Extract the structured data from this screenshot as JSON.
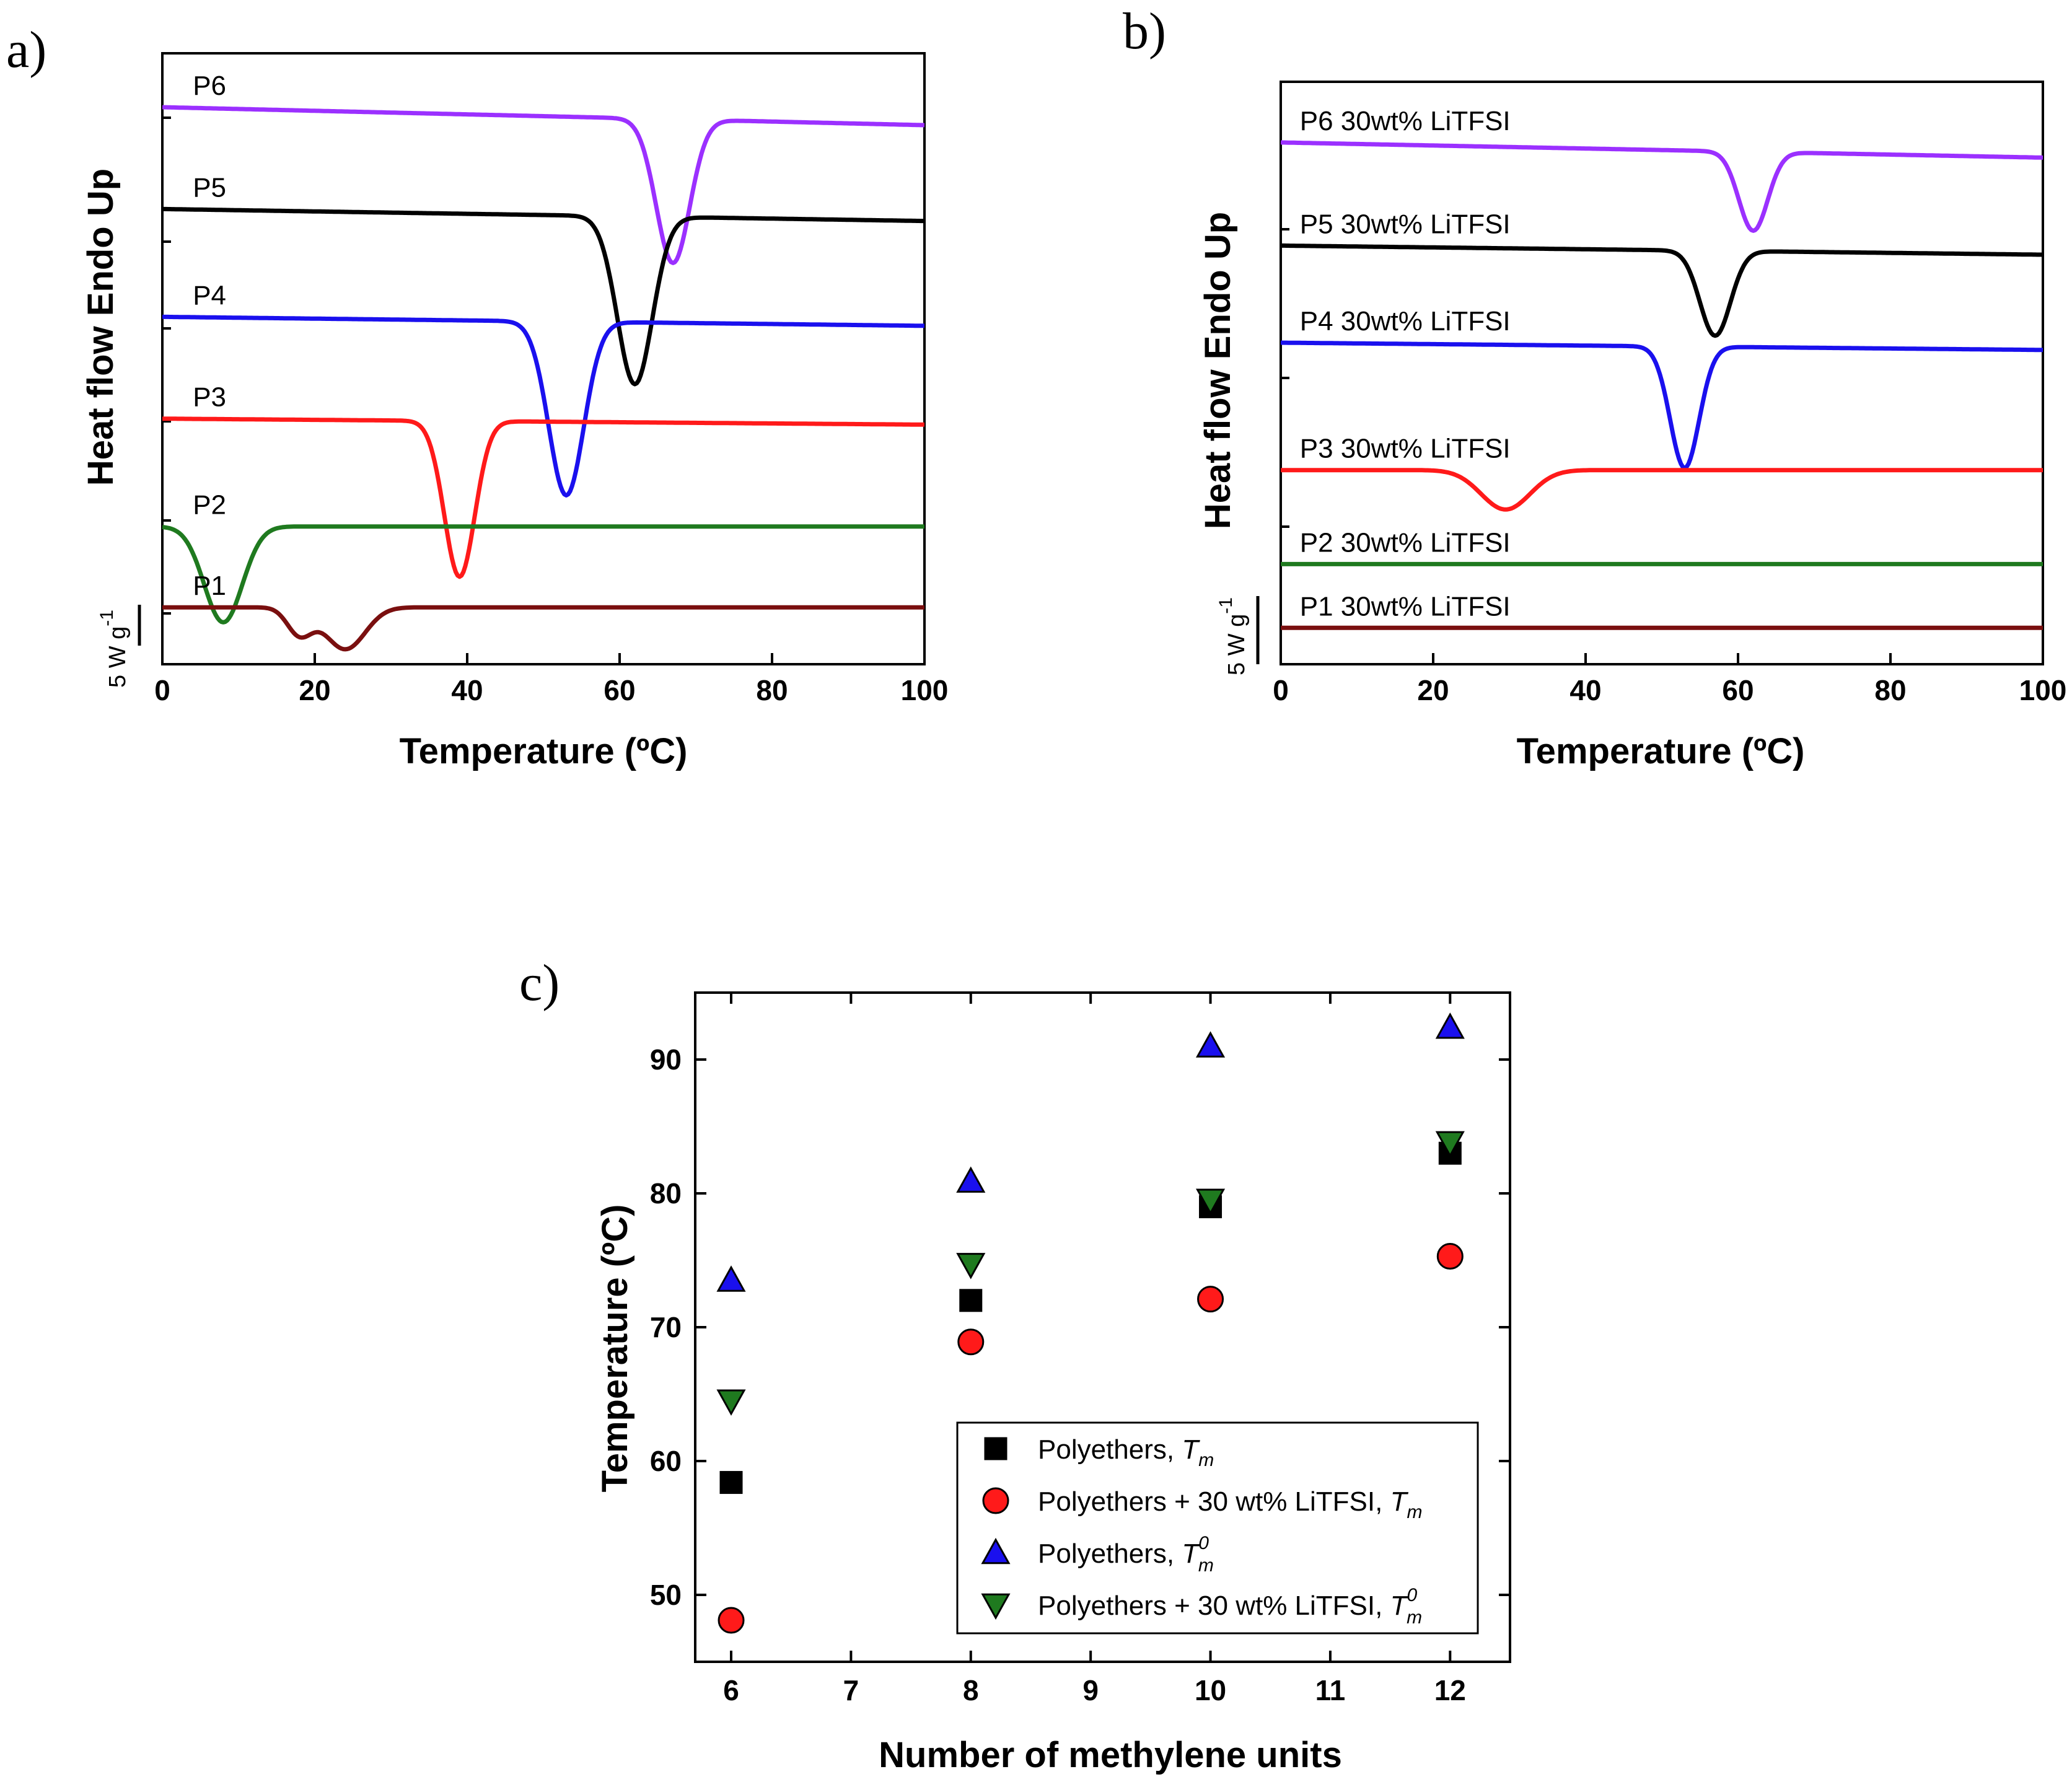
{
  "chart_data": [
    {
      "id": "a",
      "type": "line",
      "panel_label": "a)",
      "xlabel": "Temperature (ºC)",
      "ylabel": "Heat flow Endo Up",
      "xlim": [
        0,
        100
      ],
      "xticks": [
        0,
        20,
        40,
        60,
        80,
        100
      ],
      "scale_bar_label": "5 W g-1",
      "series": [
        {
          "name": "P6",
          "color": "#9b30ff",
          "baseline": 9.3,
          "drift": -0.3,
          "peaks": [
            {
              "x": 67,
              "depth": 2.4,
              "width": 2.2
            }
          ]
        },
        {
          "name": "P5",
          "color": "#000000",
          "baseline": 7.6,
          "drift": -0.2,
          "peaks": [
            {
              "x": 62,
              "depth": 2.8,
              "width": 2.3
            }
          ]
        },
        {
          "name": "P4",
          "color": "#1a10ee",
          "baseline": 5.8,
          "drift": -0.15,
          "peaks": [
            {
              "x": 53,
              "depth": 2.9,
              "width": 2.3
            }
          ]
        },
        {
          "name": "P3",
          "color": "#ff1a1a",
          "baseline": 4.1,
          "drift": -0.1,
          "peaks": [
            {
              "x": 39,
              "depth": 2.6,
              "width": 2.0
            }
          ]
        },
        {
          "name": "P2",
          "color": "#1f7a1f",
          "baseline": 2.3,
          "drift": 0.0,
          "peaks": [
            {
              "x": 8,
              "depth": 1.6,
              "width": 2.5
            }
          ]
        },
        {
          "name": "P1",
          "color": "#7a0f0f",
          "baseline": 0.95,
          "drift": 0.0,
          "peaks": [
            {
              "x": 18,
              "depth": 0.45,
              "width": 1.6
            },
            {
              "x": 24,
              "depth": 0.7,
              "width": 2.6
            }
          ]
        }
      ]
    },
    {
      "id": "b",
      "type": "line",
      "panel_label": "b)",
      "xlabel": "Temperature (ºC)",
      "ylabel": "Heat flow Endo Up",
      "xlim": [
        0,
        100
      ],
      "xticks": [
        0,
        20,
        40,
        60,
        80,
        100
      ],
      "scale_bar_label": "5 W g-1",
      "series": [
        {
          "name": "P6 30wt% LiTFSI",
          "color": "#9b30ff",
          "baseline": 8.2,
          "drift": -0.25,
          "peaks": [
            {
              "x": 62,
              "depth": 1.3,
              "width": 1.9
            }
          ]
        },
        {
          "name": "P5 30wt% LiTFSI",
          "color": "#000000",
          "baseline": 6.5,
          "drift": -0.15,
          "peaks": [
            {
              "x": 57,
              "depth": 1.4,
              "width": 2.0
            }
          ]
        },
        {
          "name": "P4 30wt% LiTFSI",
          "color": "#1a10ee",
          "baseline": 4.9,
          "drift": -0.12,
          "peaks": [
            {
              "x": 53,
              "depth": 2.0,
              "width": 1.9
            }
          ]
        },
        {
          "name": "P3 30wt% LiTFSI",
          "color": "#ff1a1a",
          "baseline": 2.8,
          "drift": 0.0,
          "peaks": [
            {
              "x": 29.5,
              "depth": 0.65,
              "width": 3.2
            }
          ]
        },
        {
          "name": "P2 30wt% LiTFSI",
          "color": "#1f7a1f",
          "baseline": 1.25,
          "drift": 0.0,
          "peaks": []
        },
        {
          "name": "P1 30wt% LiTFSI",
          "color": "#7a0f0f",
          "baseline": 0.2,
          "drift": 0.0,
          "peaks": []
        }
      ]
    },
    {
      "id": "c",
      "type": "scatter",
      "panel_label": "c)",
      "xlabel": "Number of methylene units",
      "ylabel": "Temperature (ºC)",
      "xlim": [
        5.7,
        12.5
      ],
      "ylim": [
        45,
        95
      ],
      "xticks": [
        6,
        7,
        8,
        9,
        10,
        11,
        12
      ],
      "yticks": [
        50,
        60,
        70,
        80,
        90
      ],
      "legend_position": "bottom-right",
      "series": [
        {
          "name": "Polyethers, ",
          "name_italic": "Tm",
          "sup": "",
          "marker": "square",
          "color": "#000000",
          "x": [
            6,
            8,
            10,
            12
          ],
          "y": [
            58.4,
            72.0,
            79.0,
            83.0
          ]
        },
        {
          "name": "Polyethers + 30 wt% LiTFSI, ",
          "name_italic": "Tm",
          "sup": "",
          "marker": "circle",
          "color": "#ff1a1a",
          "x": [
            6,
            8,
            10,
            12
          ],
          "y": [
            48.1,
            68.9,
            72.1,
            75.3
          ]
        },
        {
          "name": "Polyethers, ",
          "name_italic": "Tm",
          "sup": "0",
          "marker": "triangle-up",
          "color": "#1a10ee",
          "x": [
            6,
            8,
            10,
            12
          ],
          "y": [
            73.5,
            80.9,
            91.0,
            92.4
          ]
        },
        {
          "name": "Polyethers + 30 wt% LiTFSI, ",
          "name_italic": "Tm",
          "sup": "0",
          "marker": "triangle-down",
          "color": "#1f7a1f",
          "x": [
            6,
            8,
            10,
            12
          ],
          "y": [
            64.5,
            74.7,
            79.5,
            83.8
          ]
        }
      ]
    }
  ]
}
